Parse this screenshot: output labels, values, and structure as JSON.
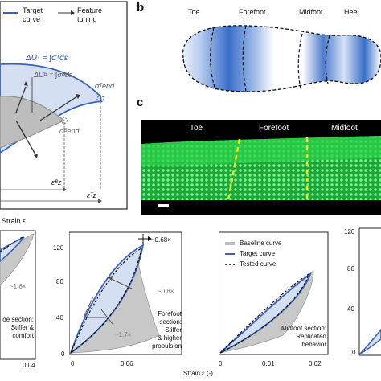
{
  "panel_a": {
    "legend": {
      "target_line1": "Target",
      "target_line2": "curve",
      "feature_line1": "Feature",
      "feature_line2": "tuning"
    },
    "eq_total": "ΔUᵀ = ∫σᵀdε",
    "eq_base": "ΔUᴮ = ∫σᴮdε",
    "sigma_end_T": "σᵀend",
    "sigma_end_B": "σᴮend",
    "eps_B": "εᴮz",
    "eps_T": "εᵀz",
    "xlabel": "Strain ε"
  },
  "panel_b": {
    "letter": "b",
    "labels": [
      "Toe",
      "Forefoot",
      "Midfoot",
      "Heel"
    ]
  },
  "panel_c": {
    "letter": "c",
    "labels": [
      "Toe",
      "Forefoot",
      "Midfoot"
    ]
  },
  "bottom": {
    "plot1": {
      "ann_ratio": "~1.6×",
      "section_line1": "oe section:",
      "section_line2": "Stiffer &",
      "section_line3": "comfort",
      "xtick_end": "0.04"
    },
    "plot2": {
      "yticks": [
        "120",
        "80",
        "40",
        "0"
      ],
      "xticks": [
        "0",
        "0.06"
      ],
      "ann_top": "~0.68×",
      "ann_mid": "~0.8×",
      "ann_low": "~1.7×",
      "section_line1": "Forefoot",
      "section_line2": "section: Stiffer",
      "section_line3": "& higher",
      "section_line4": "propulsion",
      "xlabel": "Strain ε (-)"
    },
    "plot3": {
      "xticks": [
        "0",
        "0.01",
        "0.02"
      ],
      "legend": [
        "Baseline curve",
        "Target curve",
        "Tested curve"
      ],
      "section_line1": "Midfoot section:",
      "section_line2": "Replicated",
      "section_line3": "behavior"
    },
    "plot4": {
      "yticks": [
        "120",
        "80",
        "40",
        "0"
      ]
    }
  },
  "colors": {
    "blue": "#3a62b5",
    "light_blue": "#cfdcf0",
    "gray": "#bdbdbd",
    "green": "#2fd84a",
    "yellow": "#f2e51d"
  }
}
